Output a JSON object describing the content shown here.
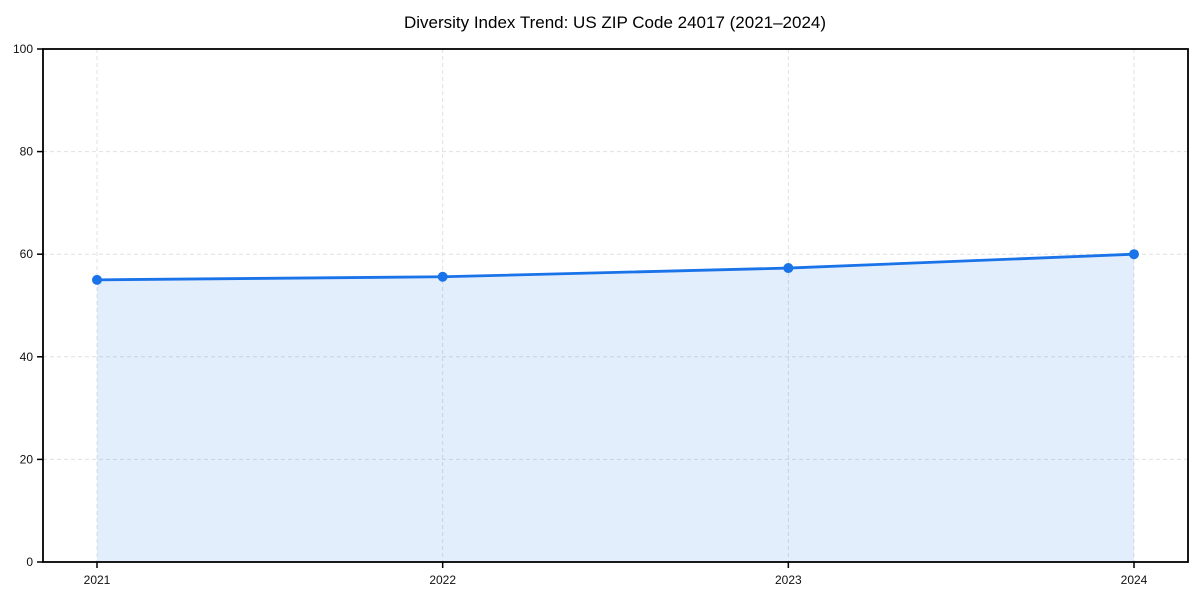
{
  "chart_data": {
    "type": "area",
    "title": "Diversity Index Trend: US ZIP Code 24017 (2021–2024)",
    "categories": [
      "2021",
      "2022",
      "2023",
      "2024"
    ],
    "series": [
      {
        "name": "Diversity Index",
        "values": [
          55.0,
          55.6,
          57.3,
          60.0
        ]
      }
    ],
    "xlabel": "",
    "ylabel": "",
    "ylim": [
      0,
      100
    ],
    "yticks": [
      0,
      20,
      40,
      60,
      80,
      100
    ],
    "grid": true,
    "grid_style": "dashed",
    "legend": false,
    "colors": {
      "line": "#1a73e8",
      "marker": "#1a73e8",
      "fill": "rgba(26,115,232,0.12)",
      "gridline": "#e0e0e0",
      "axis": "#000000",
      "tick_label": "#111111",
      "background": "#ffffff"
    }
  }
}
